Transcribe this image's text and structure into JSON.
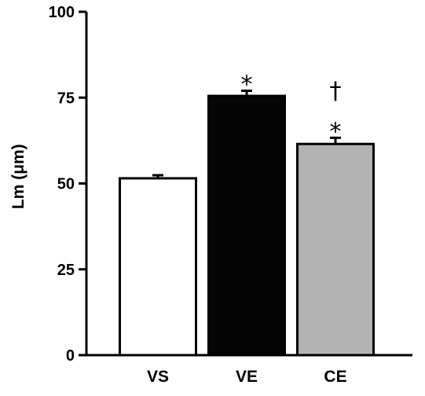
{
  "chart_data": {
    "type": "bar",
    "ylabel": "Lm (μm)",
    "ylim": [
      0,
      100
    ],
    "yticks": [
      0,
      25,
      50,
      75,
      100
    ],
    "categories": [
      "VS",
      "VE",
      "CE"
    ],
    "values": [
      51.5,
      75.5,
      61.5
    ],
    "errors": [
      0.9,
      1.5,
      1.8
    ],
    "bar_colors": [
      "#ffffff",
      "#050505",
      "#b3b3b3"
    ],
    "annotations": [
      {
        "category": "VE",
        "marks": [
          "*"
        ]
      },
      {
        "category": "CE",
        "marks": [
          "†",
          "*"
        ]
      }
    ]
  }
}
